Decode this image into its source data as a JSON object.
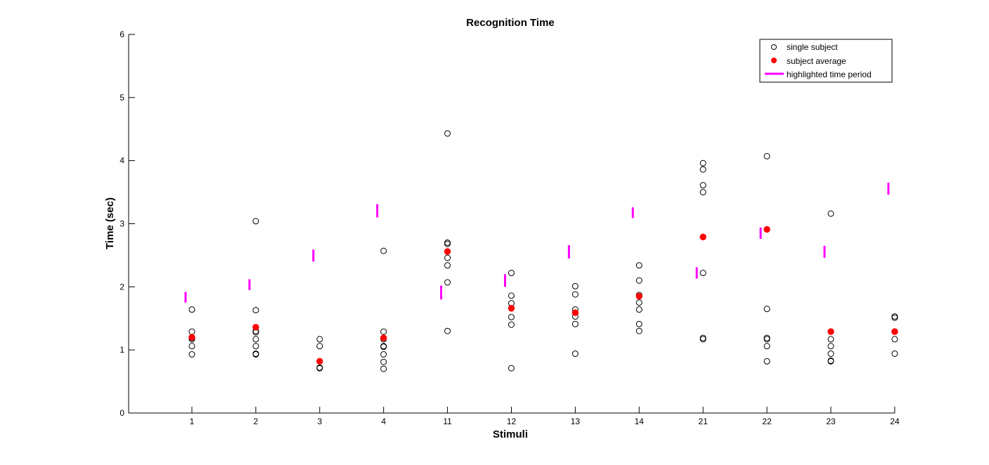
{
  "chart_data": {
    "type": "scatter",
    "title": "Recognition Time",
    "xlabel": "Stimuli",
    "ylabel": "Time (sec)",
    "ylim": [
      0,
      6
    ],
    "yticks": [
      "0",
      "1",
      "2",
      "3",
      "4",
      "5",
      "6"
    ],
    "categories": [
      "1",
      "2",
      "3",
      "4",
      "11",
      "12",
      "13",
      "14",
      "21",
      "22",
      "23",
      "24"
    ],
    "legend_position": "top-right",
    "colors": {
      "single": "#000000",
      "average": "#ff0000",
      "highlight": "#ff00ff",
      "axis": "#000000"
    },
    "series": [
      {
        "name": "single subject",
        "marker": "open-circle",
        "points": [
          [
            1,
            1.64
          ],
          [
            1,
            1.29
          ],
          [
            1,
            1.19
          ],
          [
            1,
            1.17
          ],
          [
            1,
            1.06
          ],
          [
            1,
            0.93
          ],
          [
            2,
            3.04
          ],
          [
            2,
            1.63
          ],
          [
            2,
            1.3
          ],
          [
            2,
            1.28
          ],
          [
            2,
            1.17
          ],
          [
            2,
            1.06
          ],
          [
            2,
            0.94
          ],
          [
            2,
            0.93
          ],
          [
            3,
            1.17
          ],
          [
            3,
            1.06
          ],
          [
            3,
            0.72
          ],
          [
            3,
            0.71
          ],
          [
            4,
            2.57
          ],
          [
            4,
            1.29
          ],
          [
            4,
            1.17
          ],
          [
            4,
            1.06
          ],
          [
            4,
            1.05
          ],
          [
            4,
            0.93
          ],
          [
            4,
            0.81
          ],
          [
            4,
            0.7
          ],
          [
            11,
            4.43
          ],
          [
            11,
            2.7
          ],
          [
            11,
            2.68
          ],
          [
            11,
            2.46
          ],
          [
            11,
            2.34
          ],
          [
            11,
            2.07
          ],
          [
            11,
            1.3
          ],
          [
            12,
            2.22
          ],
          [
            12,
            1.86
          ],
          [
            12,
            1.74
          ],
          [
            12,
            1.52
          ],
          [
            12,
            1.4
          ],
          [
            12,
            0.71
          ],
          [
            13,
            2.01
          ],
          [
            13,
            1.88
          ],
          [
            13,
            1.64
          ],
          [
            13,
            1.53
          ],
          [
            13,
            1.41
          ],
          [
            13,
            0.94
          ],
          [
            14,
            2.34
          ],
          [
            14,
            2.1
          ],
          [
            14,
            1.87
          ],
          [
            14,
            1.75
          ],
          [
            14,
            1.64
          ],
          [
            14,
            1.41
          ],
          [
            14,
            1.3
          ],
          [
            21,
            3.96
          ],
          [
            21,
            3.86
          ],
          [
            21,
            3.61
          ],
          [
            21,
            3.5
          ],
          [
            21,
            2.22
          ],
          [
            21,
            1.19
          ],
          [
            21,
            1.17
          ],
          [
            22,
            4.07
          ],
          [
            22,
            1.65
          ],
          [
            22,
            1.19
          ],
          [
            22,
            1.17
          ],
          [
            22,
            1.06
          ],
          [
            22,
            0.82
          ],
          [
            23,
            3.16
          ],
          [
            23,
            1.17
          ],
          [
            23,
            1.06
          ],
          [
            23,
            0.94
          ],
          [
            23,
            0.83
          ],
          [
            23,
            0.82
          ],
          [
            24,
            1.53
          ],
          [
            24,
            1.51
          ],
          [
            24,
            1.17
          ],
          [
            24,
            0.94
          ]
        ]
      },
      {
        "name": "subject average",
        "marker": "filled-dot",
        "points": [
          [
            1,
            1.2
          ],
          [
            2,
            1.36
          ],
          [
            3,
            0.82
          ],
          [
            4,
            1.19
          ],
          [
            11,
            2.56
          ],
          [
            12,
            1.66
          ],
          [
            13,
            1.59
          ],
          [
            14,
            1.85
          ],
          [
            21,
            2.79
          ],
          [
            22,
            2.91
          ],
          [
            23,
            1.29
          ],
          [
            24,
            1.29
          ]
        ]
      },
      {
        "name": "highlighted time period",
        "marker": "vertical-bar",
        "points": [
          [
            1,
            1.75,
            1.92
          ],
          [
            2,
            1.95,
            2.12
          ],
          [
            3,
            2.4,
            2.59
          ],
          [
            4,
            3.1,
            3.31
          ],
          [
            11,
            1.8,
            2.02
          ],
          [
            12,
            2.0,
            2.2
          ],
          [
            13,
            2.45,
            2.66
          ],
          [
            14,
            3.09,
            3.26
          ],
          [
            21,
            2.13,
            2.31
          ],
          [
            22,
            2.76,
            2.94
          ],
          [
            23,
            2.46,
            2.65
          ],
          [
            24,
            3.46,
            3.65
          ]
        ]
      }
    ]
  }
}
